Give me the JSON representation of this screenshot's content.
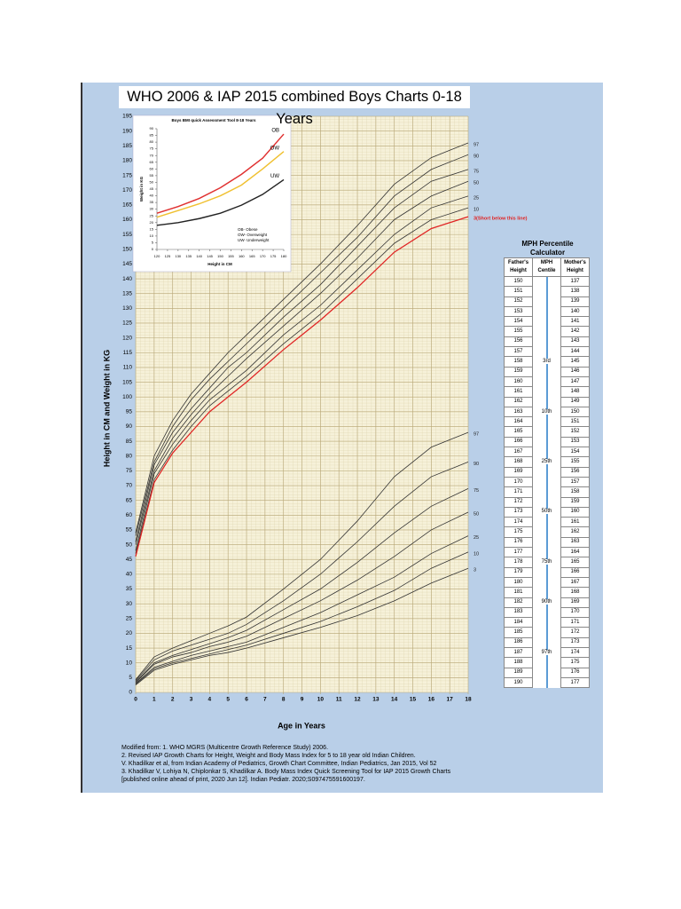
{
  "chart_data": [
    {
      "type": "line",
      "title": "WHO 2006 & IAP 2015 combined Boys Charts 0-18 Years",
      "x_label": "Age in Years",
      "y_label": "Height in CM and Weight in KG",
      "x": [
        0,
        1,
        2,
        3,
        4,
        5,
        6,
        8,
        10,
        12,
        14,
        16,
        18
      ],
      "xlim": [
        0,
        18
      ],
      "xticks": [
        0,
        1,
        2,
        3,
        4,
        5,
        6,
        7,
        8,
        9,
        10,
        11,
        12,
        13,
        14,
        15,
        16,
        17,
        18
      ],
      "ylim": [
        0,
        195
      ],
      "yticks": [
        0,
        5,
        10,
        15,
        20,
        25,
        30,
        35,
        40,
        45,
        50,
        55,
        60,
        65,
        70,
        75,
        80,
        85,
        90,
        95,
        100,
        105,
        110,
        115,
        120,
        125,
        130,
        135,
        140,
        145,
        150,
        155,
        160,
        165,
        170,
        175,
        180,
        185,
        190,
        195
      ],
      "grid": true,
      "series": [
        {
          "name": "97",
          "color": "#333333",
          "values": [
            54,
            80,
            92,
            101,
            108,
            115,
            121,
            133,
            145,
            158,
            172,
            181,
            186
          ]
        },
        {
          "name": "90",
          "color": "#333333",
          "values": [
            53,
            78,
            90,
            99,
            106,
            112,
            118,
            130,
            142,
            154,
            168,
            177,
            182
          ]
        },
        {
          "name": "75",
          "color": "#333333",
          "values": [
            51,
            77,
            88,
            96,
            103,
            110,
            115,
            127,
            138,
            151,
            164,
            173,
            177
          ]
        },
        {
          "name": "50",
          "color": "#333333",
          "values": [
            50,
            75,
            86,
            94,
            101,
            107,
            113,
            124,
            135,
            147,
            160,
            168,
            173
          ]
        },
        {
          "name": "25",
          "color": "#333333",
          "values": [
            48,
            74,
            84,
            92,
            99,
            104,
            109,
            121,
            131,
            143,
            155,
            164,
            168
          ]
        },
        {
          "name": "10",
          "color": "#333333",
          "values": [
            47,
            72,
            82,
            90,
            97,
            102,
            107,
            118,
            128,
            140,
            152,
            160,
            164
          ]
        },
        {
          "name": "3(Short below this line)",
          "color": "#e02424",
          "values": [
            46,
            71,
            81,
            88,
            95,
            100,
            105,
            116,
            126,
            137,
            149,
            157,
            161
          ]
        },
        {
          "name": "97",
          "color": "#333333",
          "values": [
            4.3,
            12,
            15,
            17.5,
            20,
            22.5,
            25.5,
            35,
            45,
            58,
            73,
            83,
            88
          ]
        },
        {
          "name": "90",
          "color": "#333333",
          "values": [
            4,
            11,
            14,
            16,
            18,
            20,
            23,
            31,
            40,
            51,
            63,
            73,
            78
          ]
        },
        {
          "name": "75",
          "color": "#333333",
          "values": [
            3.6,
            10,
            12.5,
            14.5,
            16.5,
            18.5,
            21,
            28,
            35,
            44,
            54,
            63,
            69
          ]
        },
        {
          "name": "50",
          "color": "#333333",
          "values": [
            3.3,
            9.5,
            12,
            13.5,
            15.5,
            17,
            19,
            25,
            31,
            38,
            46,
            55,
            61
          ]
        },
        {
          "name": "25",
          "color": "#333333",
          "values": [
            3,
            8.5,
            10.5,
            12.5,
            14,
            15.5,
            17,
            22,
            27,
            33,
            39,
            47,
            53
          ]
        },
        {
          "name": "10",
          "color": "#333333",
          "values": [
            2.8,
            8,
            10,
            11.5,
            13,
            14.5,
            16,
            20,
            24,
            29,
            34.5,
            42,
            47.5
          ]
        },
        {
          "name": "3",
          "color": "#333333",
          "values": [
            2.5,
            7.5,
            9.5,
            11,
            12.5,
            13.5,
            15,
            18.5,
            22,
            26,
            31,
            37,
            42
          ]
        }
      ]
    },
    {
      "type": "line",
      "title": "Boys BMI quick Assessment Tool 8-18 Years",
      "x_label": "Height in CM",
      "y_label": "Weight in KG",
      "x": [
        120,
        130,
        140,
        150,
        160,
        170,
        180
      ],
      "xlim": [
        120,
        180
      ],
      "xticks": [
        120,
        125,
        130,
        135,
        140,
        145,
        150,
        155,
        160,
        165,
        170,
        175,
        180
      ],
      "ylim": [
        0,
        90
      ],
      "yticks": [
        0,
        5,
        10,
        15,
        20,
        25,
        30,
        35,
        40,
        45,
        50,
        55,
        60,
        65,
        70,
        75,
        80,
        85,
        90
      ],
      "legend": [
        "OB- Obese",
        "OW- Overweight",
        "UW- Underweight"
      ],
      "series": [
        {
          "name": "OB",
          "color": "#e03030",
          "values": [
            27,
            32,
            38,
            46,
            56,
            68,
            86
          ]
        },
        {
          "name": "OW",
          "color": "#f0c030",
          "values": [
            24,
            29,
            34,
            40,
            48,
            60,
            73
          ]
        },
        {
          "name": "UW",
          "color": "#222222",
          "values": [
            18,
            20,
            23,
            27,
            33,
            41,
            52
          ]
        }
      ]
    }
  ],
  "mph_table": {
    "title": "MPH Percentile Calculator",
    "headers": [
      "Father's Height",
      "MPH Centile",
      "Mother's Height"
    ],
    "rows": [
      [
        150,
        null,
        137
      ],
      [
        151,
        null,
        138
      ],
      [
        152,
        null,
        139
      ],
      [
        153,
        null,
        140
      ],
      [
        154,
        null,
        141
      ],
      [
        155,
        null,
        142
      ],
      [
        156,
        null,
        143
      ],
      [
        157,
        null,
        144
      ],
      [
        158,
        "3rd",
        145
      ],
      [
        159,
        null,
        146
      ],
      [
        160,
        null,
        147
      ],
      [
        161,
        null,
        148
      ],
      [
        162,
        null,
        149
      ],
      [
        163,
        "10th",
        150
      ],
      [
        164,
        null,
        151
      ],
      [
        165,
        null,
        152
      ],
      [
        166,
        null,
        153
      ],
      [
        167,
        null,
        154
      ],
      [
        168,
        "25th",
        155
      ],
      [
        169,
        null,
        156
      ],
      [
        170,
        null,
        157
      ],
      [
        171,
        null,
        158
      ],
      [
        172,
        null,
        159
      ],
      [
        173,
        "50th",
        160
      ],
      [
        174,
        null,
        161
      ],
      [
        175,
        null,
        162
      ],
      [
        176,
        null,
        163
      ],
      [
        177,
        null,
        164
      ],
      [
        178,
        "75th",
        165
      ],
      [
        179,
        null,
        166
      ],
      [
        180,
        null,
        167
      ],
      [
        181,
        null,
        168
      ],
      [
        182,
        "90th",
        169
      ],
      [
        183,
        null,
        170
      ],
      [
        184,
        null,
        171
      ],
      [
        185,
        null,
        172
      ],
      [
        186,
        null,
        173
      ],
      [
        187,
        "97th",
        174
      ],
      [
        188,
        null,
        175
      ],
      [
        189,
        null,
        176
      ],
      [
        190,
        null,
        177
      ]
    ]
  },
  "notes": [
    "Modified from: 1. WHO MGRS (Multicentre Growth Reference Study) 2006.",
    "2. Revised IAP Growth Charts for Height, Weight and Body Mass Index for 5 to 18 year old Indian Children.",
    "V. Khadilkar et al, from Indian Academy of Pediatrics, Growth Chart Committee, Indian Pediatrics, Jan 2015, Vol 52",
    "3. Khadilkar V, Lohiya N, Chiplonkar S, Khadilkar A. Body Mass Index Quick Screening Tool for IAP 2015 Growth Charts",
    "[published online ahead of print, 2020 Jun 12]. Indian Pediatr. 2020;S097475591600197."
  ]
}
